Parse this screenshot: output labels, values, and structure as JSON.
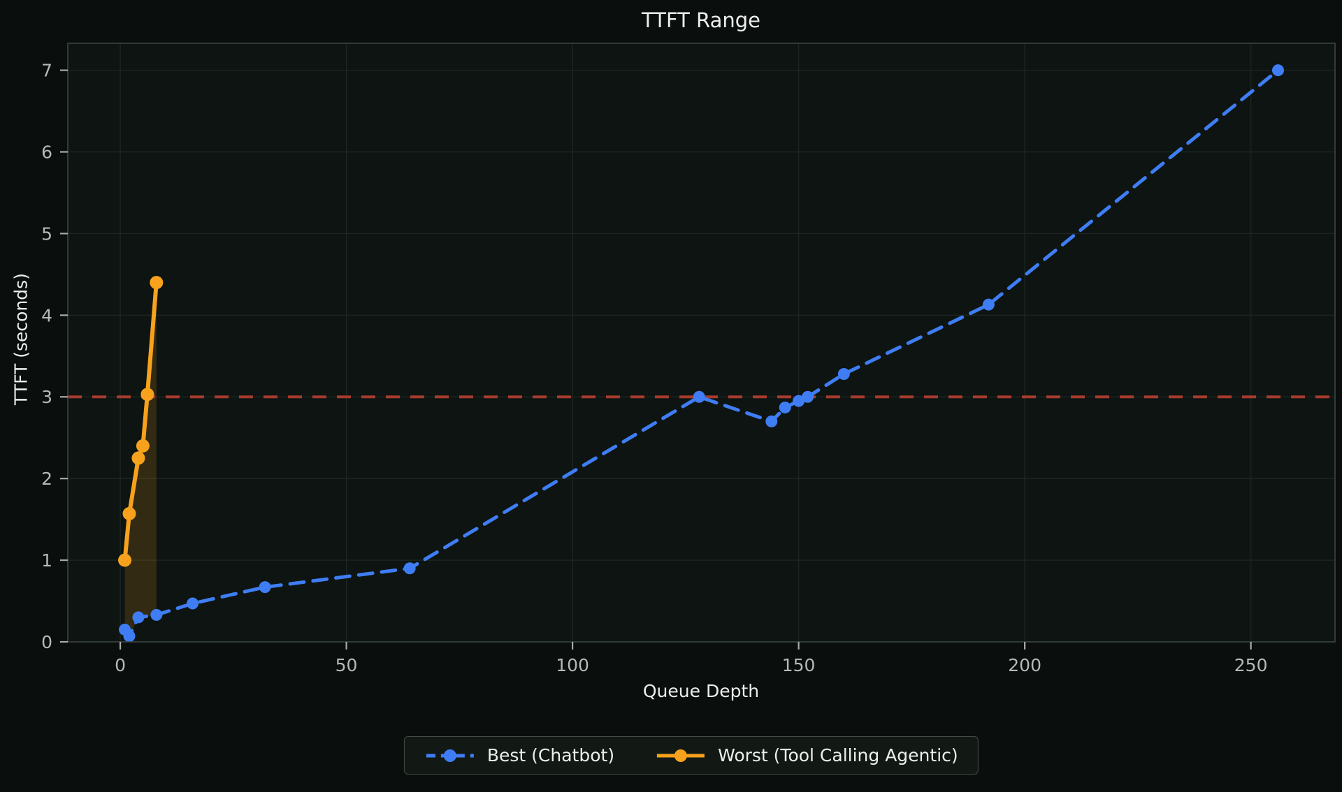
{
  "title": "TTFT Range",
  "axes": {
    "xlabel": "Queue Depth",
    "ylabel": "TTFT (seconds)"
  },
  "colors": {
    "figure_bg": "#0a0e0c",
    "plot_bg": "#0d1411",
    "grid": "#1d2622",
    "spine": "#3d4541",
    "tick_mark": "#a8aca9",
    "tick_label": "#b6bab7",
    "text": "#eceeed",
    "blue": "#3f7df4",
    "orange": "#f7a11d",
    "red": "#a63a2e",
    "range_fill": "rgba(247,161,29,0.16)"
  },
  "chart_data": {
    "type": "line",
    "title": "TTFT Range",
    "xlabel": "Queue Depth",
    "ylabel": "TTFT (seconds)",
    "xlim": [
      -11.6,
      268.6
    ],
    "ylim": [
      0,
      7.33
    ],
    "xticks": [
      0,
      50,
      100,
      150,
      200,
      250
    ],
    "yticks": [
      0,
      1,
      2,
      3,
      4,
      5,
      6,
      7
    ],
    "grid": true,
    "legend_position": "bottom-center-outside",
    "threshold_line": {
      "y": 3,
      "style": "dashed",
      "color": "#a63a2e"
    },
    "series": [
      {
        "name": "Best (Chatbot)",
        "color": "#3f7df4",
        "style": "dashed",
        "marker": "circle",
        "points": [
          [
            1,
            0.15
          ],
          [
            2,
            0.07
          ],
          [
            4,
            0.3
          ],
          [
            8,
            0.33
          ],
          [
            16,
            0.47
          ],
          [
            32,
            0.67
          ],
          [
            64,
            0.9
          ],
          [
            128,
            3.0
          ],
          [
            144,
            2.7
          ],
          [
            147,
            2.87
          ],
          [
            150,
            2.95
          ],
          [
            152,
            3.0
          ],
          [
            160,
            3.28
          ],
          [
            192,
            4.13
          ],
          [
            256,
            7.0
          ]
        ]
      },
      {
        "name": "Worst (Tool Calling Agentic)",
        "color": "#f7a11d",
        "style": "solid",
        "marker": "circle",
        "points": [
          [
            1,
            1.0
          ],
          [
            2,
            1.57
          ],
          [
            4,
            2.25
          ],
          [
            5,
            2.4
          ],
          [
            6,
            3.03
          ],
          [
            8,
            4.4
          ]
        ]
      }
    ],
    "range_fill": {
      "between": [
        "Worst (Tool Calling Agentic)",
        "Best (Chatbot)"
      ],
      "x_range": [
        1,
        8
      ],
      "color": "rgba(247,161,29,0.16)"
    }
  },
  "legend": {
    "items": [
      {
        "label": "Best (Chatbot)",
        "color": "#3f7df4",
        "style": "dashed"
      },
      {
        "label": "Worst (Tool Calling Agentic)",
        "color": "#f7a11d",
        "style": "solid"
      }
    ]
  }
}
